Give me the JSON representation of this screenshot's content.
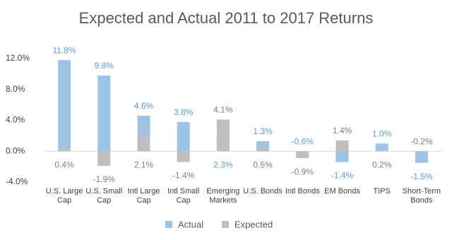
{
  "chart_data": {
    "type": "bar",
    "title": "Expected and Actual 2011 to 2017 Returns",
    "categories": [
      "U.S. Large Cap",
      "U.S. Small Cap",
      "Intl Large Cap",
      "Intl Small Cap",
      "Emerging Markets",
      "U.S. Bonds",
      "Intl Bonds",
      "EM Bonds",
      "TIPS",
      "Short-Term Bonds"
    ],
    "series": [
      {
        "name": "Actual",
        "color": "#9dc3e6",
        "label_color": "#5b9bd5",
        "values": [
          11.8,
          9.8,
          4.6,
          3.8,
          2.3,
          1.3,
          -0.6,
          -1.4,
          1.0,
          -1.5
        ],
        "value_labels": [
          "11.8%",
          "9.8%",
          "4.6%",
          "3.8%",
          "2.3%",
          "1.3%",
          "-0.6%",
          "-1.4%",
          "1.0%",
          "-1.5%"
        ]
      },
      {
        "name": "Expected",
        "color": "#bfbfbf",
        "label_color": "#7f7f7f",
        "values": [
          0.4,
          -1.9,
          2.1,
          -1.4,
          4.1,
          0.5,
          -0.9,
          1.4,
          0.2,
          -0.2
        ],
        "value_labels": [
          "0.4%",
          "-1.9%",
          "2.1%",
          "-1.4%",
          "4.1%",
          "0.5%",
          "-0.9%",
          "1.4%",
          "0.2%",
          "-0.2%"
        ]
      }
    ],
    "ylim": [
      -4,
      12
    ],
    "yticks": [
      {
        "value": -4,
        "label": "-4.0%"
      },
      {
        "value": 0,
        "label": "0.0%"
      },
      {
        "value": 4,
        "label": "4.0%"
      },
      {
        "value": 8,
        "label": "8.0%"
      },
      {
        "value": 12,
        "label": "12.0%"
      }
    ],
    "grid": false,
    "legend": "bottom"
  }
}
